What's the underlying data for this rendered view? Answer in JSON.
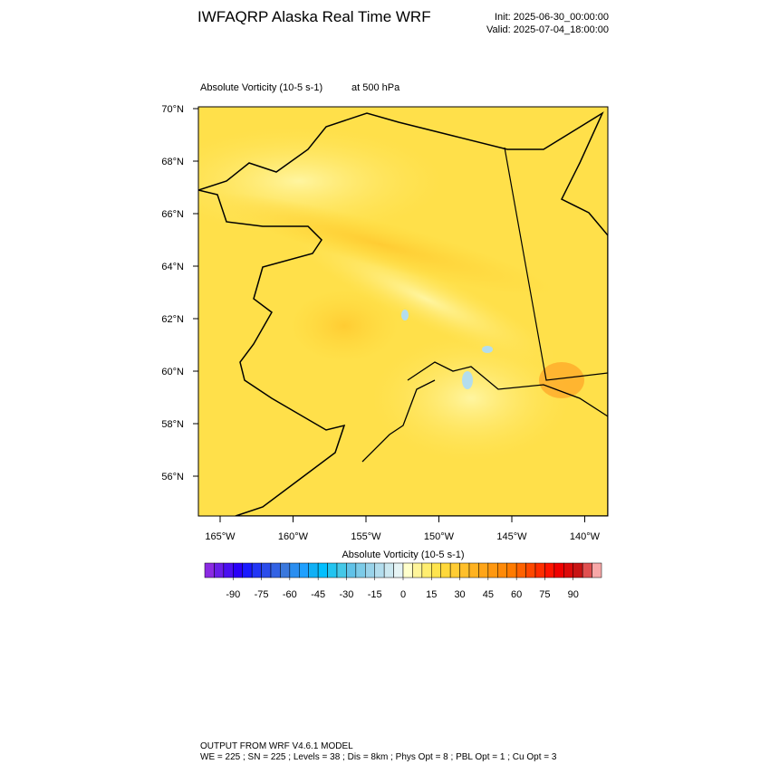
{
  "header": {
    "title": "IWFAQRP Alaska Real Time WRF",
    "init": "Init: 2025-06-30_00:00:00",
    "valid": "Valid: 2025-07-04_18:00:00"
  },
  "map": {
    "field": "Absolute Vorticity   (10-5 s-1)",
    "level": "at   500 hPa",
    "lat_ticks": [
      {
        "value": 70,
        "label": "70°N"
      },
      {
        "value": 68,
        "label": "68°N"
      },
      {
        "value": 66,
        "label": "66°N"
      },
      {
        "value": 64,
        "label": "64°N"
      },
      {
        "value": 62,
        "label": "62°N"
      },
      {
        "value": 60,
        "label": "60°N"
      },
      {
        "value": 58,
        "label": "58°N"
      },
      {
        "value": 56,
        "label": "56°N"
      }
    ],
    "lon_ticks": [
      {
        "value": -165,
        "label": "165°W"
      },
      {
        "value": -160,
        "label": "160°W"
      },
      {
        "value": -155,
        "label": "155°W"
      },
      {
        "value": -150,
        "label": "150°W"
      },
      {
        "value": -145,
        "label": "145°W"
      },
      {
        "value": -140,
        "label": "140°W"
      }
    ]
  },
  "colorbar": {
    "title": "Absolute Vorticity  (10-5 s-1)",
    "xlim": [
      -105,
      105
    ],
    "colors": [
      "#8b2be2",
      "#6a1fe8",
      "#4a10f0",
      "#2a00f8",
      "#1a1aff",
      "#2236f5",
      "#2a4ceb",
      "#3262e4",
      "#3a78dd",
      "#2b8ef0",
      "#1fa0ff",
      "#10b0f5",
      "#00bfff",
      "#22c4f0",
      "#44c8e8",
      "#60c2e8",
      "#7ccbe8",
      "#99d3ea",
      "#b3dded",
      "#cce8f0",
      "#e6f4f5",
      "#ffffcc",
      "#fff59a",
      "#ffee70",
      "#ffe44d",
      "#ffd83a",
      "#ffcc33",
      "#ffbf2a",
      "#ffb220",
      "#ffa518",
      "#ff9810",
      "#ff8a08",
      "#ff7b00",
      "#ff6200",
      "#ff4800",
      "#ff2e00",
      "#ff1400",
      "#f00000",
      "#dc0a0a",
      "#c81414",
      "#e05050",
      "#f8a8a8"
    ],
    "ticks": [
      -90,
      -75,
      -60,
      -45,
      -30,
      -15,
      0,
      15,
      30,
      45,
      60,
      75,
      90
    ]
  },
  "footer": {
    "line1": "OUTPUT FROM WRF V4.6.1 MODEL",
    "line2": "WE = 225 ; SN = 225 ; Levels = 38 ; Dis = 8km ; Phys Opt = 8 ; PBL Opt = 1 ; Cu Opt = 3"
  }
}
